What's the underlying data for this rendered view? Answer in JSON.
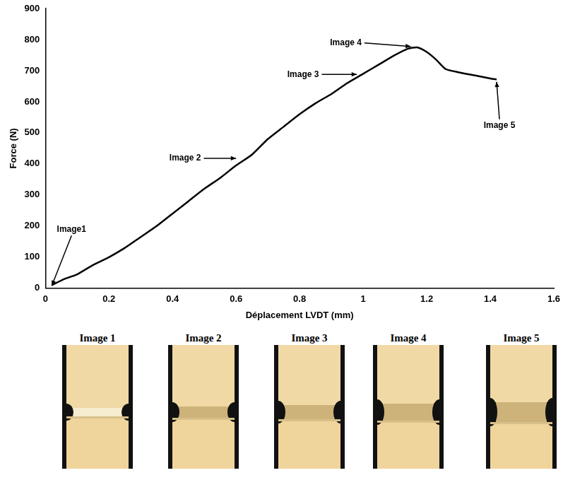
{
  "chart_data": {
    "type": "line",
    "xlabel": "Déplacement LVDT (mm)",
    "ylabel": "Force (N)",
    "x": [
      0.02,
      0.06,
      0.1,
      0.15,
      0.2,
      0.25,
      0.3,
      0.35,
      0.4,
      0.45,
      0.5,
      0.55,
      0.6,
      0.65,
      0.7,
      0.75,
      0.8,
      0.85,
      0.9,
      0.95,
      1.0,
      1.05,
      1.1,
      1.14,
      1.17,
      1.2,
      1.23,
      1.26,
      1.3,
      1.35,
      1.4,
      1.42
    ],
    "values": [
      10,
      30,
      45,
      75,
      100,
      130,
      165,
      200,
      240,
      280,
      320,
      355,
      395,
      430,
      480,
      520,
      560,
      595,
      625,
      660,
      690,
      720,
      750,
      770,
      775,
      760,
      735,
      705,
      695,
      685,
      675,
      672
    ],
    "color": "#000000",
    "xlim": [
      0,
      1.6
    ],
    "xticks": [
      0,
      0.2,
      0.4,
      0.6,
      0.8,
      1,
      1.2,
      1.4,
      1.6
    ],
    "ylim": [
      0,
      900
    ],
    "yticks": [
      0,
      100,
      200,
      300,
      400,
      500,
      600,
      700,
      800,
      900
    ],
    "grid": false,
    "annotations": [
      {
        "text": "Image1",
        "x": 0.02,
        "y": 8
      },
      {
        "text": "Image 2",
        "x": 0.6,
        "y": 418
      },
      {
        "text": "Image 3",
        "x": 0.98,
        "y": 688
      },
      {
        "text": "Image 4",
        "x": 1.15,
        "y": 778
      },
      {
        "text": "Image 5",
        "x": 1.42,
        "y": 664
      }
    ]
  },
  "photos": {
    "labels": [
      "Image 1",
      "Image 2",
      "Image 3",
      "Image 4",
      "Image 5"
    ]
  }
}
